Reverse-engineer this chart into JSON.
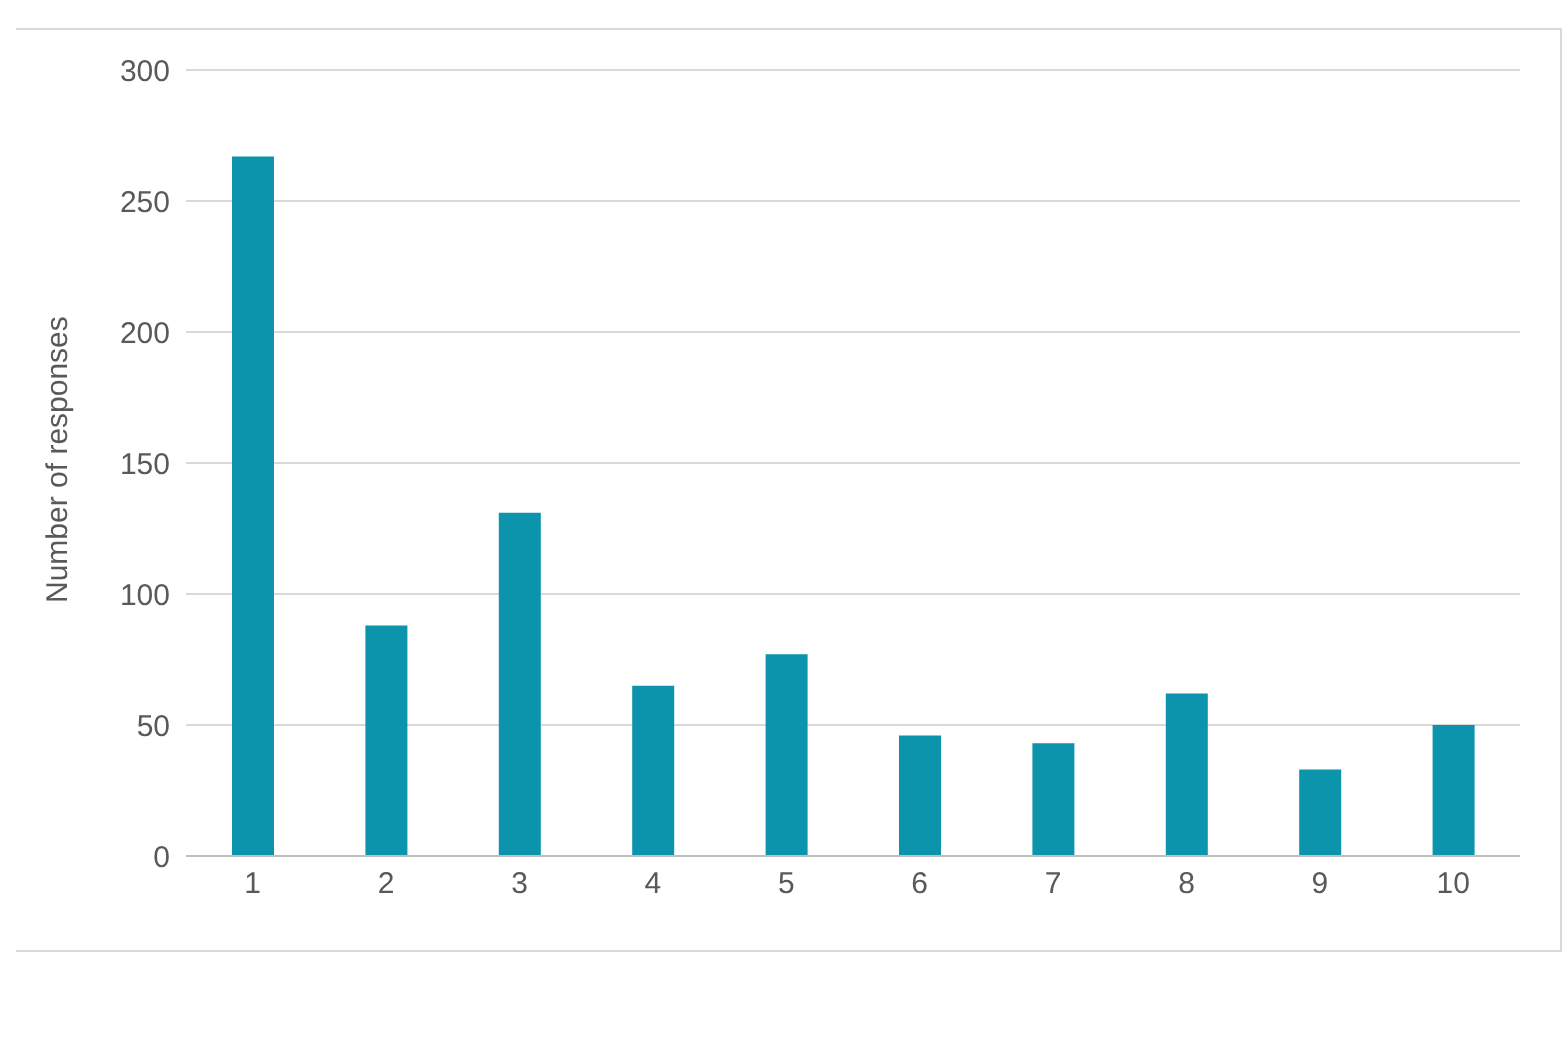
{
  "chart_data": {
    "type": "bar",
    "ylabel": "Number of responses",
    "categories": [
      "1",
      "2",
      "3",
      "4",
      "5",
      "6",
      "7",
      "8",
      "9",
      "10"
    ],
    "values": [
      267,
      88,
      131,
      65,
      77,
      46,
      43,
      62,
      33,
      50
    ],
    "color": "#0b94ab",
    "ylim": [
      0,
      300
    ],
    "yticks": [
      0,
      50,
      100,
      150,
      200,
      250,
      300
    ],
    "grid": "y"
  }
}
